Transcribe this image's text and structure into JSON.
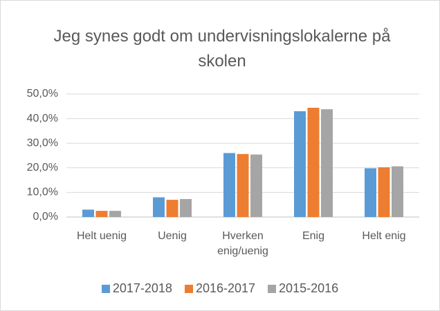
{
  "chart_data": {
    "type": "bar",
    "title": "Jeg synes godt om undervisningslokalerne på skolen",
    "categories": [
      "Helt uenig",
      "Uenig",
      "Hverken enig/uenig",
      "Enig",
      "Helt enig"
    ],
    "series": [
      {
        "name": "2017-2018",
        "color": "#5b9bd5",
        "values": [
          3.0,
          8.0,
          26.0,
          43.0,
          19.8
        ]
      },
      {
        "name": "2016-2017",
        "color": "#ed7d31",
        "values": [
          2.5,
          7.0,
          25.6,
          44.4,
          20.2
        ]
      },
      {
        "name": "2015-2016",
        "color": "#a5a5a5",
        "values": [
          2.5,
          7.3,
          25.4,
          43.8,
          20.6
        ]
      }
    ],
    "ylim": [
      0,
      50
    ],
    "yticks": [
      {
        "value": 0,
        "label": "0,0%"
      },
      {
        "value": 10,
        "label": "10,0%"
      },
      {
        "value": 20,
        "label": "20,0%"
      },
      {
        "value": 30,
        "label": "30,0%"
      },
      {
        "value": 40,
        "label": "40,0%"
      },
      {
        "value": 50,
        "label": "50,0%"
      }
    ],
    "grid": true,
    "legend": "bottom"
  }
}
